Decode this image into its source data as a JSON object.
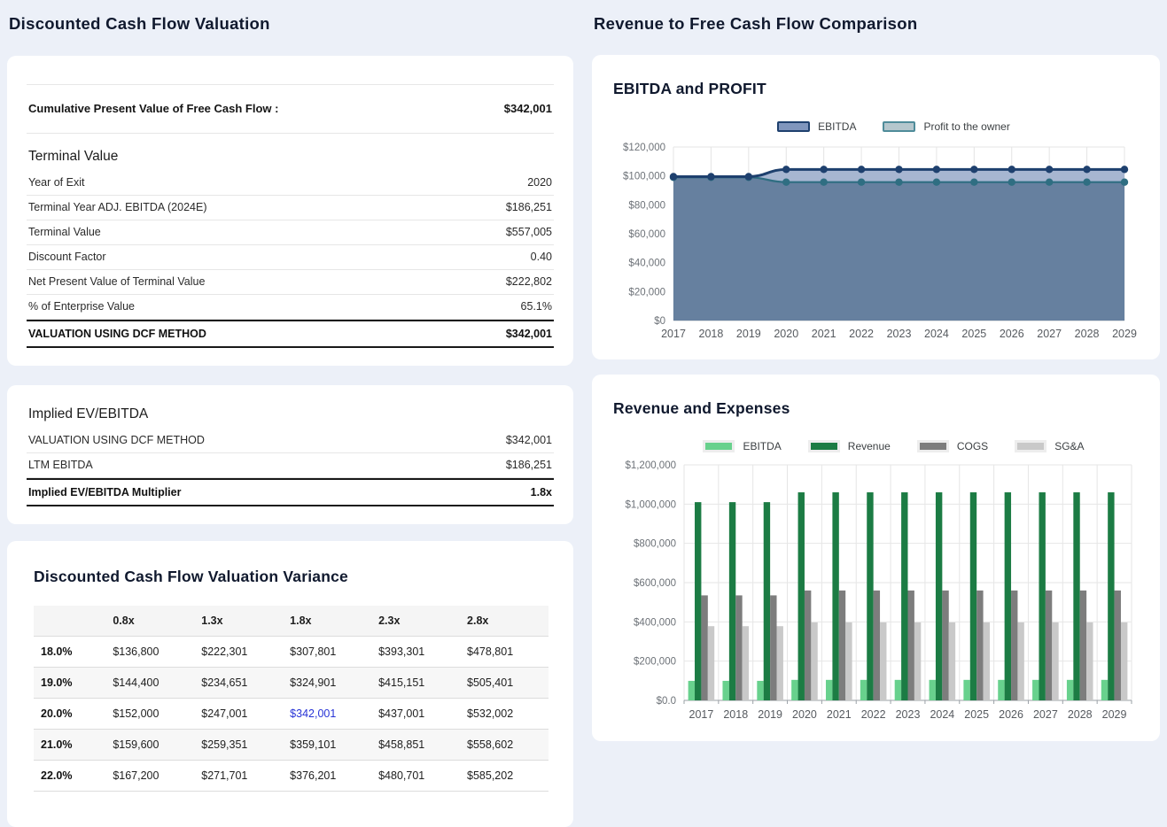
{
  "left": {
    "title": "Discounted Cash Flow Valuation",
    "summary_card": {
      "summary_label": "Cumulative Present Value of Free Cash Flow :",
      "summary_value": "$342,001",
      "terminal": {
        "heading": "Terminal Value",
        "rows": [
          {
            "label": "Year of Exit",
            "value": "2020"
          },
          {
            "label": "Terminal Year ADJ. EBITDA (2024E)",
            "value": "$186,251"
          },
          {
            "label": "Terminal Value",
            "value": "$557,005"
          },
          {
            "label": "Discount Factor",
            "value": "0.40"
          },
          {
            "label": "Net Present Value of Terminal Value",
            "value": "$222,802"
          },
          {
            "label": "% of Enterprise Value",
            "value": "65.1%"
          }
        ],
        "total": {
          "label": "VALUATION USING DCF METHOD",
          "value": "$342,001"
        }
      }
    },
    "implied_card": {
      "heading": "Implied EV/EBITDA",
      "rows": [
        {
          "label": "VALUATION USING DCF METHOD",
          "value": "$342,001"
        },
        {
          "label": "LTM EBITDA",
          "value": "$186,251"
        }
      ],
      "total": {
        "label": "Implied EV/EBITDA Multiplier",
        "value": "1.8x"
      }
    },
    "variance_card": {
      "heading": "Discounted Cash Flow Valuation Variance",
      "columns": [
        "0.8x",
        "1.3x",
        "1.8x",
        "2.3x",
        "2.8x"
      ],
      "rows": [
        {
          "label": "18.0%",
          "values": [
            "$136,800",
            "$222,301",
            "$307,801",
            "$393,301",
            "$478,801"
          ]
        },
        {
          "label": "19.0%",
          "values": [
            "$144,400",
            "$234,651",
            "$324,901",
            "$415,151",
            "$505,401"
          ]
        },
        {
          "label": "20.0%",
          "values": [
            "$152,000",
            "$247,001",
            "$342,001",
            "$437,001",
            "$532,002"
          ]
        },
        {
          "label": "21.0%",
          "values": [
            "$159,600",
            "$259,351",
            "$359,101",
            "$458,851",
            "$558,602"
          ]
        },
        {
          "label": "22.0%",
          "values": [
            "$167,200",
            "$271,701",
            "$376,201",
            "$480,701",
            "$585,202"
          ]
        }
      ],
      "highlight": {
        "row": 2,
        "col": 2,
        "color": "#2733d6"
      }
    }
  },
  "right": {
    "title": "Revenue to Free Cash Flow Comparison"
  },
  "chart_data": [
    {
      "type": "area",
      "title": "EBITDA and PROFIT",
      "x": [
        2017,
        2018,
        2019,
        2020,
        2021,
        2022,
        2023,
        2024,
        2025,
        2026,
        2027,
        2028,
        2029
      ],
      "series": [
        {
          "name": "EBITDA",
          "values": [
            99500,
            99500,
            99500,
            104500,
            104500,
            104500,
            104500,
            104500,
            104500,
            104500,
            104500,
            104500,
            104500
          ],
          "line_color": "#1e406e",
          "fill_color": "#a7b6d1",
          "swatch_fill": "#8096bd",
          "swatch_border": "#1e406e"
        },
        {
          "name": "Profit to the owner",
          "values": [
            99000,
            99000,
            99000,
            95700,
            95700,
            95700,
            95700,
            95700,
            95700,
            95700,
            95700,
            95700,
            95700
          ],
          "line_color": "#2f6e82",
          "fill_color": "#66809f",
          "swatch_fill": "#b5c7cd",
          "swatch_border": "#4f8c9a"
        }
      ],
      "ylim": [
        0,
        120000
      ],
      "y_tick_values": [
        120000,
        100000,
        80000,
        60000,
        40000,
        20000,
        0
      ],
      "y_tick_labels": [
        "$120,000",
        "$100,000",
        "$80,000",
        "$60,000",
        "$40,000",
        "$20,000",
        "$0"
      ],
      "grid": true,
      "legend_position": "top"
    },
    {
      "type": "bar",
      "title": "Revenue and Expenses",
      "x": [
        2017,
        2018,
        2019,
        2020,
        2021,
        2022,
        2023,
        2024,
        2025,
        2026,
        2027,
        2028,
        2029
      ],
      "series": [
        {
          "name": "EBITDA",
          "color": "#68d18d",
          "values": [
            99500,
            99500,
            99500,
            104500,
            104500,
            104500,
            104500,
            104500,
            104500,
            104500,
            104500,
            104500,
            104500
          ]
        },
        {
          "name": "Revenue",
          "color": "#1c7c44",
          "values": [
            1010000,
            1010000,
            1010000,
            1060000,
            1060000,
            1060000,
            1060000,
            1060000,
            1060000,
            1060000,
            1060000,
            1060000,
            1060000
          ]
        },
        {
          "name": "COGS",
          "color": "#7d7d7d",
          "values": [
            535000,
            535000,
            535000,
            560000,
            560000,
            560000,
            560000,
            560000,
            560000,
            560000,
            560000,
            560000,
            560000
          ]
        },
        {
          "name": "SG&A",
          "color": "#c9c9c9",
          "values": [
            378000,
            378000,
            378000,
            397000,
            397000,
            397000,
            397000,
            397000,
            397000,
            397000,
            397000,
            397000,
            397000
          ]
        }
      ],
      "ylim": [
        0,
        1200000
      ],
      "y_tick_values": [
        1200000,
        1000000,
        800000,
        600000,
        400000,
        200000,
        0
      ],
      "y_tick_labels": [
        "$1,200,000",
        "$1,000,000",
        "$800,000",
        "$600,000",
        "$400,000",
        "$200,000",
        "$0.0"
      ],
      "grid": true,
      "legend_position": "top"
    }
  ]
}
